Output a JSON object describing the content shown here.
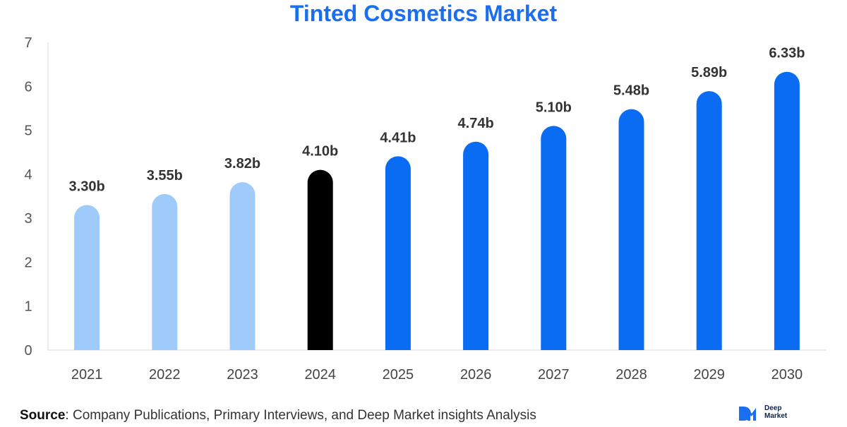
{
  "title": "Tinted Cosmetics Market",
  "chart_data": {
    "type": "bar",
    "title": "Tinted Cosmetics Market",
    "categories": [
      "2021",
      "2022",
      "2023",
      "2024",
      "2025",
      "2026",
      "2027",
      "2028",
      "2029",
      "2030"
    ],
    "values": [
      3.3,
      3.55,
      3.82,
      4.1,
      4.41,
      4.74,
      5.1,
      5.48,
      5.89,
      6.33
    ],
    "data_labels": [
      "3.30b",
      "3.55b",
      "3.82b",
      "4.10b",
      "4.41b",
      "4.74b",
      "5.10b",
      "5.48b",
      "5.89b",
      "6.33b"
    ],
    "bar_colors": [
      "#9fcbfa",
      "#9fcbfa",
      "#9fcbfa",
      "#000000",
      "#0a6cf2",
      "#0a6cf2",
      "#0a6cf2",
      "#0a6cf2",
      "#0a6cf2",
      "#0a6cf2"
    ],
    "yticks": [
      0,
      1,
      2,
      3,
      4,
      5,
      6,
      7
    ],
    "ylim": [
      0,
      7
    ],
    "xlabel": "",
    "ylabel": "",
    "grid": false,
    "legend": "none"
  },
  "footer": {
    "source_key": "Source",
    "source_text": ": Company Publications, Primary Interviews, and Deep Market insights Analysis"
  },
  "brand": {
    "line1": "Deep",
    "line2": "Market",
    "mark_color": "#1a6ef0"
  }
}
